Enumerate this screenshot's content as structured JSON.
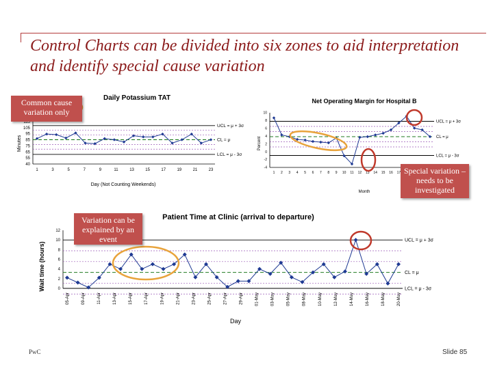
{
  "slide": {
    "title": "Control Charts can be divided into six zones to aid interpretation and identify special cause variation",
    "footer_left": "PwC",
    "footer_right": "Slide 85",
    "accent_color": "#c0504d",
    "title_color": "#8b1a1a"
  },
  "callouts": {
    "common_cause": "Common cause variation only",
    "special_variation": "Special variation – needs to be investigated",
    "explained_event": "Variation can be explained by an event"
  },
  "chart_data": [
    {
      "type": "line",
      "title": "Daily Potassium TAT",
      "xlabel": "Day (Not Counting Weekends)",
      "ylabel": "Minutes",
      "x_ticks": [
        "1",
        "3",
        "5",
        "7",
        "9",
        "11",
        "13",
        "15",
        "17",
        "19",
        "21",
        "23"
      ],
      "y_ticks": [
        "40",
        "55",
        "65",
        "75",
        "85",
        "95",
        "105",
        "115"
      ],
      "ylim": [
        40,
        115
      ],
      "series": [
        {
          "values": [
            85,
            93,
            92,
            86,
            95,
            77,
            76,
            85,
            83,
            79,
            90,
            88,
            88,
            93,
            77,
            83,
            93,
            77,
            83
          ]
        }
      ],
      "control_lines": {
        "ucl": 108,
        "cl": 83,
        "lcl": 57
      },
      "control_labels": {
        "ucl": "UCL = μ + 3σ",
        "cl": "CL = μ",
        "lcl": "LCL = μ - 3σ"
      }
    },
    {
      "type": "line",
      "title": "Net Operating Margin for Hospital B",
      "xlabel": "Month",
      "ylabel": "Percent",
      "x_ticks": [
        "1",
        "2",
        "3",
        "4",
        "5",
        "6",
        "7",
        "8",
        "9",
        "10",
        "11",
        "12",
        "13",
        "14",
        "15",
        "16",
        "17",
        "18",
        "19",
        "20",
        "21"
      ],
      "y_ticks": [
        "-4",
        "-2",
        "0",
        "2",
        "4",
        "6",
        "8",
        "10"
      ],
      "ylim": [
        -4,
        12
      ],
      "series": [
        {
          "values": [
            10.5,
            5.5,
            5,
            4.2,
            4,
            3.6,
            3.4,
            3.2,
            4.6,
            -0.6,
            -3,
            4.8,
            5,
            5.5,
            6,
            7,
            9,
            11,
            7.5,
            7,
            5
          ]
        }
      ],
      "control_lines": {
        "ucl": 9.5,
        "cl": 5,
        "lcl": -0.5
      },
      "control_labels": {
        "ucl": "UCL = μ + 3σ",
        "cl": "CL = μ",
        "lcl": "LCL = μ - 3σ"
      }
    },
    {
      "type": "line",
      "title": "Patient Time at Clinic (arrival to departure)",
      "xlabel": "Day",
      "ylabel": "Wait time (hours)",
      "x_ticks": [
        "05-Apr",
        "09-Apr",
        "11-Apr",
        "13-Apr",
        "15-Apr",
        "17-Apr",
        "19-Apr",
        "21-Apr",
        "23-Apr",
        "25-Apr",
        "27-Apr",
        "29-Apr",
        "01-May",
        "03-May",
        "05-May",
        "08-May",
        "10-May",
        "12-May",
        "14-May",
        "16-May",
        "18-May",
        "20-May"
      ],
      "y_ticks": [
        "0",
        "2",
        "4",
        "6",
        "8",
        "10",
        "12"
      ],
      "ylim": [
        0,
        12
      ],
      "series": [
        {
          "values": [
            2.2,
            1.2,
            0.2,
            2.2,
            5,
            4,
            7,
            4,
            5,
            4,
            5,
            7,
            2.3,
            5,
            2.3,
            0.3,
            1.5,
            1.5,
            4,
            3,
            5.3,
            2.3,
            1.3,
            3.3,
            5,
            2.3,
            3.5,
            10,
            3,
            5,
            1,
            5
          ]
        }
      ],
      "control_lines": {
        "ucl": 10,
        "cl": 3.3,
        "lcl": 0
      },
      "control_labels": {
        "ucl": "UCL = μ + 3σ",
        "cl": "CL = μ",
        "lcl": "LCL = μ - 3σ"
      }
    }
  ]
}
